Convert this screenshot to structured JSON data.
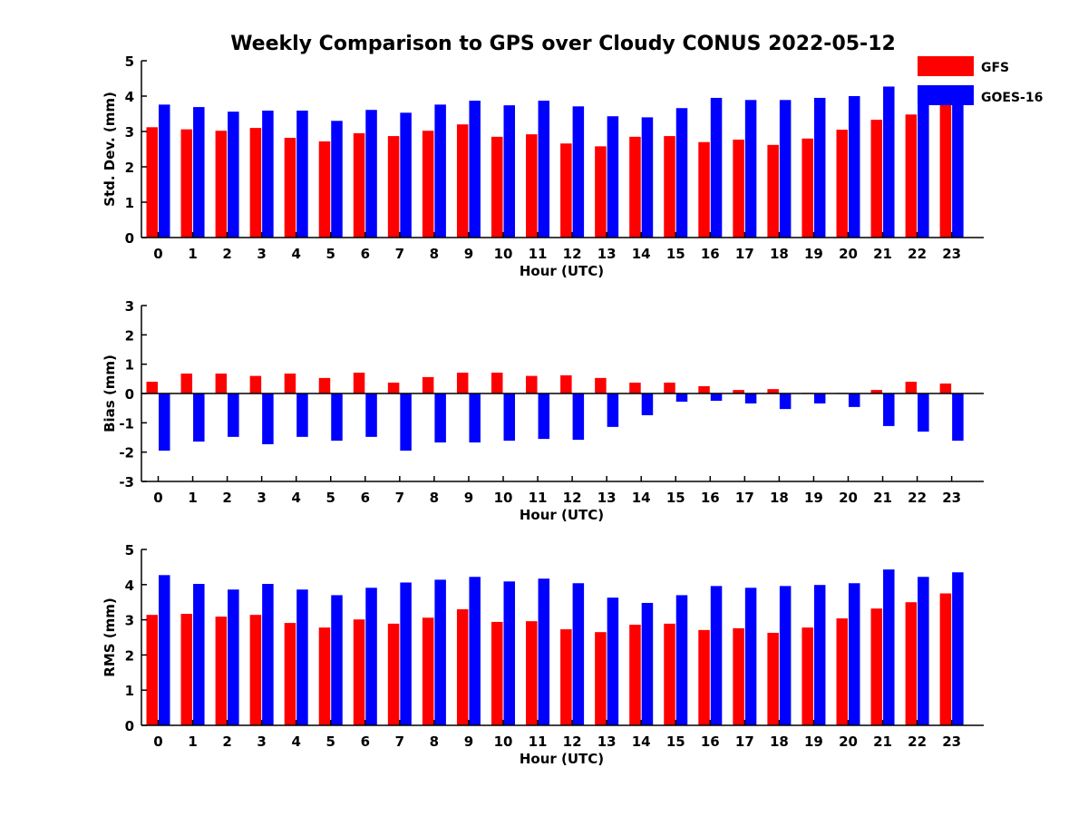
{
  "figure": {
    "title": "Weekly Comparison to GPS over Cloudy CONUS 2022-05-12",
    "legend": [
      {
        "name": "GFS",
        "color": "#ff0000"
      },
      {
        "name": "GOES-16",
        "color": "#0000ff"
      }
    ]
  },
  "chart_data": [
    {
      "type": "bar",
      "categories": [
        "0",
        "1",
        "2",
        "3",
        "4",
        "5",
        "6",
        "7",
        "8",
        "9",
        "10",
        "11",
        "12",
        "13",
        "14",
        "15",
        "16",
        "17",
        "18",
        "19",
        "20",
        "21",
        "22",
        "23"
      ],
      "xlabel": "Hour (UTC)",
      "ylabel": "Std. Dev. (mm)",
      "ylim": [
        0,
        5
      ],
      "yticks": [
        0,
        1,
        2,
        3,
        4,
        5
      ],
      "legend_position": "top-right",
      "series": [
        {
          "name": "GFS",
          "color": "#ff0000",
          "values": [
            3.12,
            3.06,
            3.02,
            3.1,
            2.82,
            2.72,
            2.95,
            2.87,
            3.02,
            3.2,
            2.85,
            2.92,
            2.66,
            2.58,
            2.85,
            2.87,
            2.7,
            2.77,
            2.62,
            2.8,
            3.05,
            3.33,
            3.48,
            3.75
          ]
        },
        {
          "name": "GOES-16",
          "color": "#0000ff",
          "values": [
            3.76,
            3.69,
            3.56,
            3.59,
            3.59,
            3.3,
            3.61,
            3.53,
            3.76,
            3.87,
            3.74,
            3.87,
            3.71,
            3.43,
            3.4,
            3.66,
            3.95,
            3.89,
            3.89,
            3.95,
            4.0,
            4.27,
            4.0,
            3.95
          ]
        }
      ]
    },
    {
      "type": "bar",
      "categories": [
        "0",
        "1",
        "2",
        "3",
        "4",
        "5",
        "6",
        "7",
        "8",
        "9",
        "10",
        "11",
        "12",
        "13",
        "14",
        "15",
        "16",
        "17",
        "18",
        "19",
        "20",
        "21",
        "22",
        "23"
      ],
      "xlabel": "Hour (UTC)",
      "ylabel": "Bias (mm)",
      "ylim": [
        -3,
        3
      ],
      "yticks": [
        -3,
        -2,
        -1,
        0,
        1,
        2,
        3
      ],
      "series": [
        {
          "name": "GFS",
          "color": "#ff0000",
          "values": [
            0.4,
            0.68,
            0.68,
            0.6,
            0.68,
            0.53,
            0.71,
            0.37,
            0.56,
            0.71,
            0.71,
            0.6,
            0.62,
            0.53,
            0.37,
            0.37,
            0.25,
            0.12,
            0.15,
            0.02,
            0.02,
            0.12,
            0.4,
            0.34
          ]
        },
        {
          "name": "GOES-16",
          "color": "#0000ff",
          "values": [
            -1.95,
            -1.64,
            -1.48,
            -1.73,
            -1.48,
            -1.61,
            -1.48,
            -1.95,
            -1.67,
            -1.67,
            -1.61,
            -1.55,
            -1.58,
            -1.14,
            -0.74,
            -0.28,
            -0.25,
            -0.34,
            -0.53,
            -0.34,
            -0.46,
            -1.11,
            -1.3,
            -1.61
          ]
        }
      ]
    },
    {
      "type": "bar",
      "categories": [
        "0",
        "1",
        "2",
        "3",
        "4",
        "5",
        "6",
        "7",
        "8",
        "9",
        "10",
        "11",
        "12",
        "13",
        "14",
        "15",
        "16",
        "17",
        "18",
        "19",
        "20",
        "21",
        "22",
        "23"
      ],
      "xlabel": "Hour (UTC)",
      "ylabel": "RMS (mm)",
      "ylim": [
        0,
        5
      ],
      "yticks": [
        0,
        1,
        2,
        3,
        4,
        5
      ],
      "series": [
        {
          "name": "GFS",
          "color": "#ff0000",
          "values": [
            3.14,
            3.17,
            3.09,
            3.14,
            2.91,
            2.78,
            3.01,
            2.89,
            3.06,
            3.3,
            2.94,
            2.96,
            2.73,
            2.65,
            2.86,
            2.89,
            2.71,
            2.76,
            2.63,
            2.78,
            3.04,
            3.32,
            3.5,
            3.75
          ]
        },
        {
          "name": "GOES-16",
          "color": "#0000ff",
          "values": [
            4.27,
            4.02,
            3.86,
            4.02,
            3.86,
            3.7,
            3.91,
            4.06,
            4.14,
            4.22,
            4.09,
            4.17,
            4.04,
            3.63,
            3.48,
            3.7,
            3.96,
            3.91,
            3.96,
            3.99,
            4.04,
            4.43,
            4.22,
            4.35
          ]
        }
      ]
    }
  ]
}
